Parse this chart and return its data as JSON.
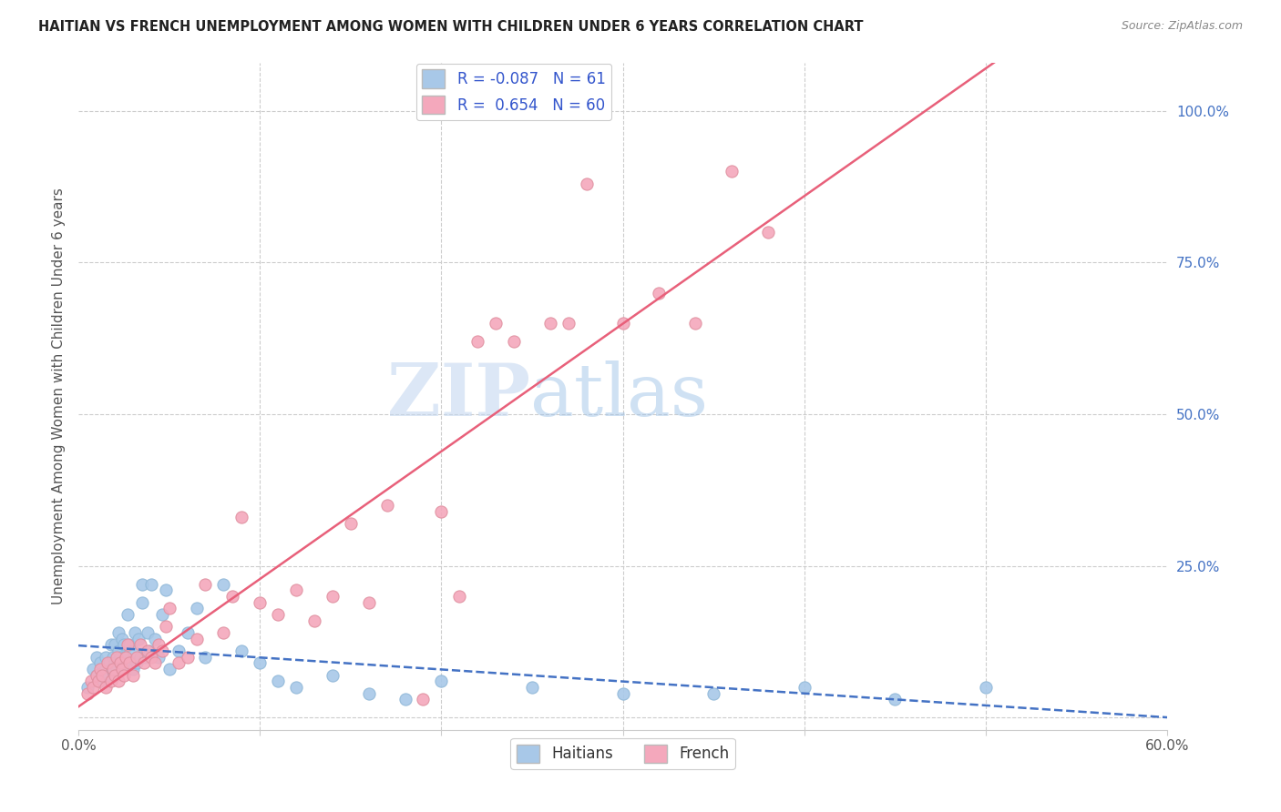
{
  "title": "HAITIAN VS FRENCH UNEMPLOYMENT AMONG WOMEN WITH CHILDREN UNDER 6 YEARS CORRELATION CHART",
  "source": "Source: ZipAtlas.com",
  "ylabel": "Unemployment Among Women with Children Under 6 years",
  "y_tick_labels_right": [
    "",
    "25.0%",
    "50.0%",
    "75.0%",
    "100.0%"
  ],
  "haitians_color": "#a8c8e8",
  "haitians_edge_color": "#90b8d8",
  "french_color": "#f4a8bc",
  "french_edge_color": "#e090a0",
  "haitians_line_color": "#4472c4",
  "french_line_color": "#e8607a",
  "R_haitian": -0.087,
  "N_haitian": 61,
  "R_french": 0.654,
  "N_french": 60,
  "legend_label_haitian": "Haitians",
  "legend_label_french": "French",
  "watermark_zip": "ZIP",
  "watermark_atlas": "atlas",
  "background_color": "#ffffff",
  "grid_color": "#cccccc",
  "title_color": "#222222",
  "axis_label_color": "#555555",
  "right_axis_color": "#4472c4",
  "haitians_scatter_x": [
    0.005,
    0.008,
    0.01,
    0.01,
    0.012,
    0.013,
    0.015,
    0.015,
    0.016,
    0.017,
    0.018,
    0.018,
    0.019,
    0.02,
    0.02,
    0.021,
    0.022,
    0.022,
    0.023,
    0.024,
    0.025,
    0.025,
    0.026,
    0.027,
    0.028,
    0.03,
    0.03,
    0.031,
    0.032,
    0.033,
    0.034,
    0.035,
    0.035,
    0.037,
    0.038,
    0.039,
    0.04,
    0.042,
    0.044,
    0.046,
    0.048,
    0.05,
    0.055,
    0.06,
    0.065,
    0.07,
    0.08,
    0.09,
    0.1,
    0.11,
    0.12,
    0.14,
    0.16,
    0.18,
    0.2,
    0.25,
    0.3,
    0.35,
    0.4,
    0.45,
    0.5
  ],
  "haitians_scatter_y": [
    0.05,
    0.08,
    0.07,
    0.1,
    0.09,
    0.06,
    0.08,
    0.1,
    0.07,
    0.09,
    0.08,
    0.12,
    0.1,
    0.09,
    0.12,
    0.08,
    0.11,
    0.14,
    0.1,
    0.13,
    0.09,
    0.12,
    0.1,
    0.17,
    0.12,
    0.08,
    0.11,
    0.14,
    0.09,
    0.13,
    0.1,
    0.19,
    0.22,
    0.1,
    0.14,
    0.11,
    0.22,
    0.13,
    0.1,
    0.17,
    0.21,
    0.08,
    0.11,
    0.14,
    0.18,
    0.1,
    0.22,
    0.11,
    0.09,
    0.06,
    0.05,
    0.07,
    0.04,
    0.03,
    0.06,
    0.05,
    0.04,
    0.04,
    0.05,
    0.03,
    0.05
  ],
  "french_scatter_x": [
    0.005,
    0.007,
    0.008,
    0.01,
    0.011,
    0.012,
    0.013,
    0.015,
    0.016,
    0.018,
    0.019,
    0.02,
    0.021,
    0.022,
    0.023,
    0.024,
    0.025,
    0.026,
    0.027,
    0.028,
    0.03,
    0.032,
    0.034,
    0.036,
    0.038,
    0.04,
    0.042,
    0.044,
    0.046,
    0.048,
    0.05,
    0.055,
    0.06,
    0.065,
    0.07,
    0.08,
    0.085,
    0.09,
    0.1,
    0.11,
    0.12,
    0.13,
    0.14,
    0.15,
    0.16,
    0.17,
    0.19,
    0.2,
    0.21,
    0.22,
    0.23,
    0.24,
    0.26,
    0.27,
    0.28,
    0.3,
    0.32,
    0.34,
    0.36,
    0.38
  ],
  "french_scatter_y": [
    0.04,
    0.06,
    0.05,
    0.07,
    0.06,
    0.08,
    0.07,
    0.05,
    0.09,
    0.06,
    0.08,
    0.07,
    0.1,
    0.06,
    0.09,
    0.08,
    0.07,
    0.1,
    0.12,
    0.09,
    0.07,
    0.1,
    0.12,
    0.09,
    0.11,
    0.1,
    0.09,
    0.12,
    0.11,
    0.15,
    0.18,
    0.09,
    0.1,
    0.13,
    0.22,
    0.14,
    0.2,
    0.33,
    0.19,
    0.17,
    0.21,
    0.16,
    0.2,
    0.32,
    0.19,
    0.35,
    0.03,
    0.34,
    0.2,
    0.62,
    0.65,
    0.62,
    0.65,
    0.65,
    0.88,
    0.65,
    0.7,
    0.65,
    0.9,
    0.8
  ]
}
